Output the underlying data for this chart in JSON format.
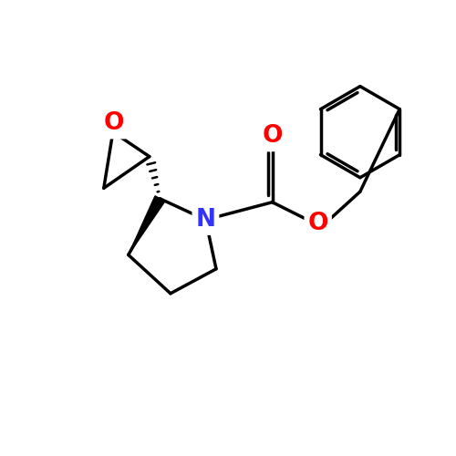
{
  "background_color": "#ffffff",
  "bond_color": "#000000",
  "nitrogen_color": "#3333ff",
  "oxygen_color": "#ff0000",
  "N_label": "N",
  "O_ep_label": "O",
  "O_carb_label": "O",
  "O_est_label": "O",
  "fontsize": 19,
  "lw": 2.5,
  "figsize": [
    5.0,
    5.0
  ],
  "dpi": 100
}
